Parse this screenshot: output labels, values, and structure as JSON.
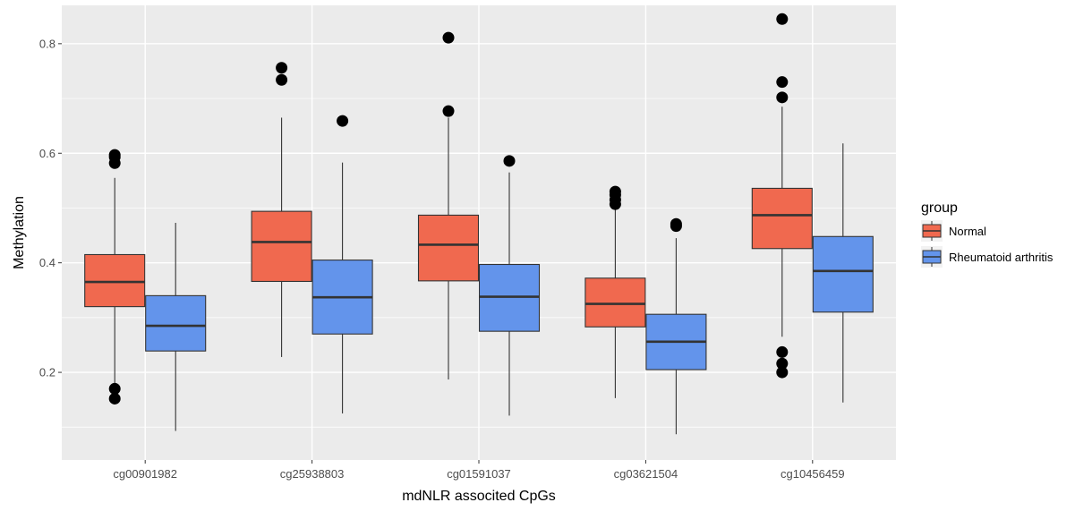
{
  "chart_data": {
    "type": "boxplot",
    "xlabel": "mdNLR associted CpGs",
    "ylabel": "Methylation",
    "ylim": [
      0.04,
      0.87
    ],
    "yticks": [
      0.2,
      0.4,
      0.6,
      0.8
    ],
    "yticks_minor": [
      0.1,
      0.3,
      0.5,
      0.7
    ],
    "ytick_labels": [
      "0.2",
      "0.4",
      "0.6",
      "0.8"
    ],
    "grid": true,
    "legend_position": "right",
    "legend_title": "group",
    "categories": [
      "cg00901982",
      "cg25938803",
      "cg01591037",
      "cg03621504",
      "cg10456459"
    ],
    "series": [
      {
        "name": "Normal",
        "color": "#F0694F",
        "boxes": [
          {
            "whisker_low": 0.18,
            "q1": 0.32,
            "median": 0.365,
            "q3": 0.415,
            "whisker_high": 0.555,
            "outliers": [
              0.597,
              0.593,
              0.582,
              0.17,
              0.152
            ]
          },
          {
            "whisker_low": 0.228,
            "q1": 0.366,
            "median": 0.438,
            "q3": 0.494,
            "whisker_high": 0.665,
            "outliers": [
              0.756,
              0.734
            ]
          },
          {
            "whisker_low": 0.187,
            "q1": 0.367,
            "median": 0.433,
            "q3": 0.487,
            "whisker_high": 0.665,
            "outliers": [
              0.811,
              0.677
            ]
          },
          {
            "whisker_low": 0.153,
            "q1": 0.283,
            "median": 0.325,
            "q3": 0.372,
            "whisker_high": 0.5,
            "outliers": [
              0.53,
              0.524,
              0.515,
              0.507
            ]
          },
          {
            "whisker_low": 0.265,
            "q1": 0.426,
            "median": 0.487,
            "q3": 0.536,
            "whisker_high": 0.685,
            "outliers": [
              0.845,
              0.73,
              0.702,
              0.237,
              0.216,
              0.2
            ]
          }
        ]
      },
      {
        "name": "Rheumatoid arthritis",
        "color": "#6394EB",
        "boxes": [
          {
            "whisker_low": 0.093,
            "q1": 0.239,
            "median": 0.285,
            "q3": 0.34,
            "whisker_high": 0.473,
            "outliers": []
          },
          {
            "whisker_low": 0.125,
            "q1": 0.27,
            "median": 0.337,
            "q3": 0.405,
            "whisker_high": 0.583,
            "outliers": [
              0.659
            ]
          },
          {
            "whisker_low": 0.121,
            "q1": 0.275,
            "median": 0.338,
            "q3": 0.397,
            "whisker_high": 0.565,
            "outliers": [
              0.586
            ]
          },
          {
            "whisker_low": 0.087,
            "q1": 0.205,
            "median": 0.256,
            "q3": 0.306,
            "whisker_high": 0.445,
            "outliers": [
              0.471,
              0.467
            ]
          },
          {
            "whisker_low": 0.145,
            "q1": 0.31,
            "median": 0.385,
            "q3": 0.448,
            "whisker_high": 0.618,
            "outliers": []
          }
        ]
      }
    ]
  }
}
